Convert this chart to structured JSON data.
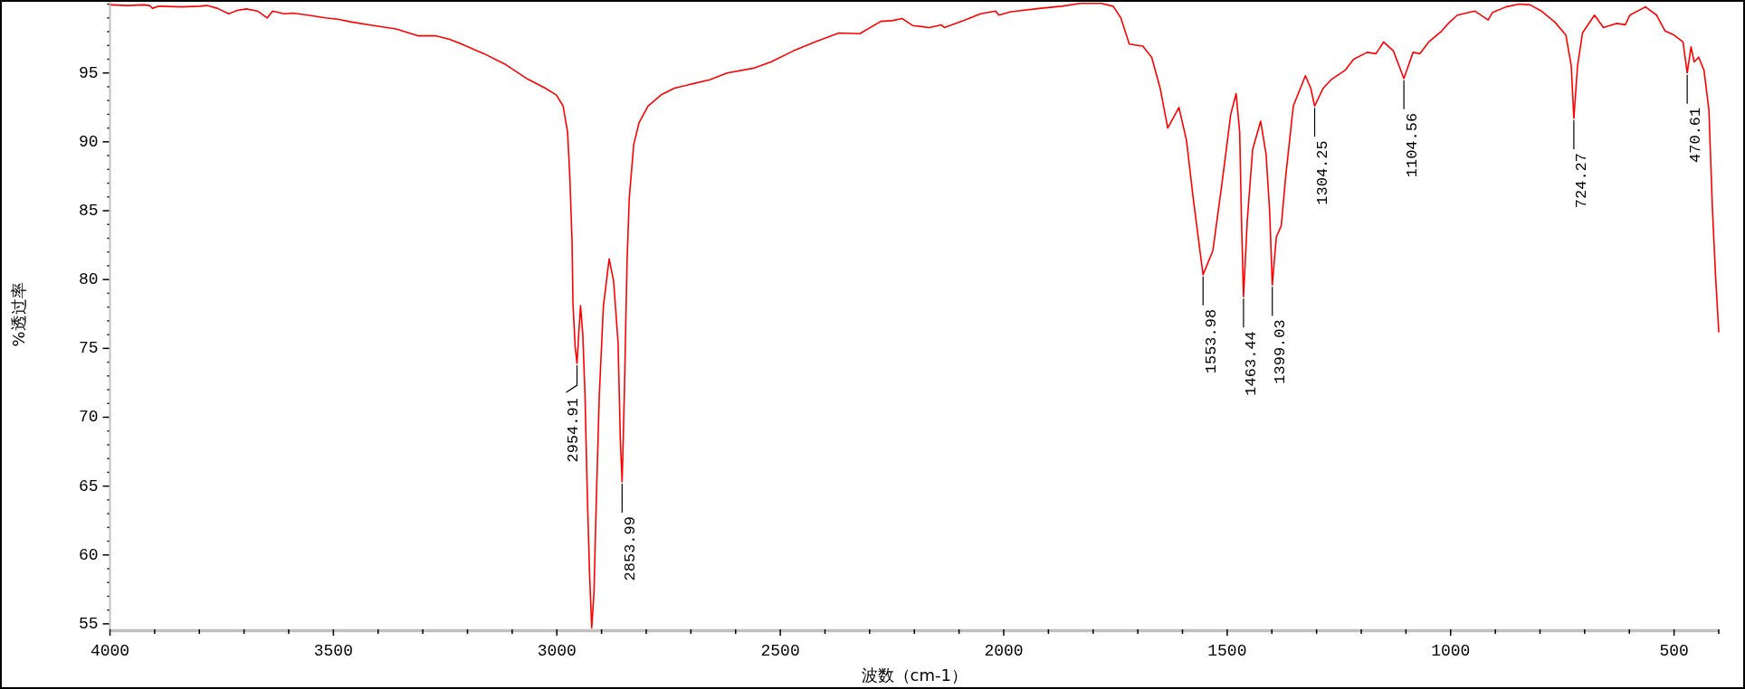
{
  "chart_data": {
    "type": "line",
    "xlabel": "波数（cm-1）",
    "ylabel": "%透过率",
    "x": [
      3998,
      3960,
      3925,
      3911,
      3905,
      3890,
      3840,
      3800,
      3783,
      3760,
      3734,
      3715,
      3695,
      3670,
      3648,
      3636,
      3610,
      3590,
      3557,
      3518,
      3490,
      3459,
      3410,
      3360,
      3311,
      3272,
      3240,
      3213,
      3163,
      3114,
      3065,
      3026,
      3001,
      2986,
      2976,
      2971,
      2966,
      2964,
      2959,
      2954.91,
      2951,
      2947,
      2942,
      2937,
      2932,
      2927,
      2922,
      2917,
      2912,
      2905,
      2896,
      2883,
      2873,
      2863,
      2858,
      2853.99,
      2849,
      2843,
      2838,
      2828,
      2816,
      2796,
      2767,
      2737,
      2698,
      2658,
      2619,
      2560,
      2521,
      2471,
      2423,
      2369,
      2322,
      2275,
      2250,
      2227,
      2204,
      2166,
      2140,
      2133,
      2086,
      2052,
      2018,
      2011,
      1984,
      1917,
      1870,
      1829,
      1782,
      1755,
      1738,
      1719,
      1689,
      1669,
      1650,
      1633,
      1608,
      1591,
      1576,
      1553.98,
      1532,
      1512,
      1492,
      1480,
      1472,
      1468,
      1463.44,
      1455,
      1443,
      1425,
      1413,
      1405,
      1399.03,
      1390,
      1379,
      1369,
      1352,
      1325,
      1313,
      1304.25,
      1285,
      1266,
      1236,
      1217,
      1187,
      1167,
      1150,
      1128,
      1104.56,
      1084,
      1069,
      1049,
      1020,
      1005,
      985,
      946,
      916,
      906,
      876,
      847,
      822,
      797,
      767,
      742,
      730,
      724.27,
      716,
      705,
      678,
      658,
      629,
      609,
      599,
      564,
      539,
      520,
      500,
      480,
      470.61,
      462,
      455,
      445,
      433,
      422,
      414,
      407,
      400
    ],
    "series": [
      {
        "color": "#ff0000",
        "values": [
          99.95,
          99.9,
          99.95,
          99.9,
          99.7,
          99.85,
          99.8,
          99.85,
          99.9,
          99.7,
          99.3,
          99.55,
          99.65,
          99.5,
          99.0,
          99.5,
          99.3,
          99.35,
          99.2,
          99.0,
          98.9,
          98.7,
          98.45,
          98.2,
          97.7,
          97.7,
          97.45,
          97.1,
          96.4,
          95.6,
          94.55,
          93.9,
          93.4,
          92.6,
          90.7,
          87.5,
          82.75,
          78.3,
          75.1,
          73.9,
          76.05,
          78.1,
          76.05,
          71.6,
          64.6,
          58.8,
          54.7,
          57.2,
          63.6,
          71.6,
          78.0,
          81.5,
          79.9,
          75.4,
          68.4,
          65.3,
          71.6,
          81.2,
          85.9,
          89.8,
          91.4,
          92.6,
          93.4,
          93.9,
          94.2,
          94.5,
          95.0,
          95.35,
          95.8,
          96.6,
          97.25,
          97.9,
          97.85,
          98.75,
          98.8,
          98.95,
          98.45,
          98.3,
          98.5,
          98.3,
          98.85,
          99.3,
          99.5,
          99.2,
          99.45,
          99.7,
          99.85,
          100.05,
          100.05,
          99.85,
          99.0,
          97.1,
          96.95,
          96.15,
          93.9,
          91.0,
          92.5,
          90.1,
          85.9,
          80.35,
          82.1,
          86.9,
          92.0,
          93.5,
          90.7,
          84.3,
          78.75,
          84.3,
          89.45,
          91.5,
          89.1,
          85.0,
          79.6,
          83.1,
          83.9,
          87.5,
          92.6,
          94.8,
          93.9,
          92.6,
          93.9,
          94.55,
          95.2,
          96.0,
          96.5,
          96.4,
          97.25,
          96.6,
          94.6,
          96.5,
          96.4,
          97.25,
          98.05,
          98.6,
          99.2,
          99.5,
          98.85,
          99.4,
          99.8,
          100.0,
          99.95,
          99.5,
          98.7,
          97.75,
          95.5,
          91.7,
          95.5,
          97.9,
          99.2,
          98.3,
          98.6,
          98.5,
          99.2,
          99.8,
          99.2,
          98.05,
          97.75,
          97.25,
          95.0,
          96.9,
          95.8,
          96.15,
          95.2,
          92.3,
          85.0,
          80.2,
          76.2
        ]
      }
    ],
    "xlim": [
      4000,
      400
    ],
    "ylim": [
      54.6,
      100.3
    ],
    "xticks": [
      4000,
      {
        "value": 3900,
        "label": null
      },
      {
        "value": 3800,
        "label": null
      },
      {
        "value": 3700,
        "label": null
      },
      {
        "value": 3600,
        "label": null
      },
      3500,
      {
        "value": 3400,
        "label": null
      },
      {
        "value": 3300,
        "label": null
      },
      {
        "value": 3200,
        "label": null
      },
      {
        "value": 3100,
        "label": null
      },
      3000,
      {
        "value": 2900,
        "label": null
      },
      {
        "value": 2800,
        "label": null
      },
      {
        "value": 2700,
        "label": null
      },
      {
        "value": 2600,
        "label": null
      },
      2500,
      {
        "value": 2400,
        "label": null
      },
      {
        "value": 2300,
        "label": null
      },
      {
        "value": 2200,
        "label": null
      },
      {
        "value": 2100,
        "label": null
      },
      2000,
      {
        "value": 1900,
        "label": null
      },
      {
        "value": 1800,
        "label": null
      },
      {
        "value": 1700,
        "label": null
      },
      {
        "value": 1600,
        "label": null
      },
      1500,
      {
        "value": 1400,
        "label": null
      },
      {
        "value": 1300,
        "label": null
      },
      {
        "value": 1200,
        "label": null
      },
      {
        "value": 1100,
        "label": null
      },
      1000,
      {
        "value": 900,
        "label": null
      },
      {
        "value": 800,
        "label": null
      },
      {
        "value": 700,
        "label": null
      },
      {
        "value": 600,
        "label": null
      },
      500,
      {
        "value": 400,
        "label": null
      }
    ],
    "yticks": [
      55,
      {
        "value": 56,
        "label": null
      },
      {
        "value": 57,
        "label": null
      },
      {
        "value": 58,
        "label": null
      },
      {
        "value": 59,
        "label": null
      },
      60,
      {
        "value": 61,
        "label": null
      },
      {
        "value": 62,
        "label": null
      },
      {
        "value": 63,
        "label": null
      },
      {
        "value": 64,
        "label": null
      },
      65,
      {
        "value": 66,
        "label": null
      },
      {
        "value": 67,
        "label": null
      },
      {
        "value": 68,
        "label": null
      },
      {
        "value": 69,
        "label": null
      },
      70,
      {
        "value": 71,
        "label": null
      },
      {
        "value": 72,
        "label": null
      },
      {
        "value": 73,
        "label": null
      },
      {
        "value": 74,
        "label": null
      },
      75,
      {
        "value": 76,
        "label": null
      },
      {
        "value": 77,
        "label": null
      },
      {
        "value": 78,
        "label": null
      },
      {
        "value": 79,
        "label": null
      },
      80,
      {
        "value": 81,
        "label": null
      },
      {
        "value": 82,
        "label": null
      },
      {
        "value": 83,
        "label": null
      },
      {
        "value": 84,
        "label": null
      },
      85,
      {
        "value": 86,
        "label": null
      },
      {
        "value": 87,
        "label": null
      },
      {
        "value": 88,
        "label": null
      },
      {
        "value": 89,
        "label": null
      },
      90,
      {
        "value": 91,
        "label": null
      },
      {
        "value": 92,
        "label": null
      },
      {
        "value": 93,
        "label": null
      },
      {
        "value": 94,
        "label": null
      },
      95,
      {
        "value": 96,
        "label": null
      },
      {
        "value": 97,
        "label": null
      },
      {
        "value": 98,
        "label": null
      },
      {
        "value": 99,
        "label": null
      },
      {
        "value": 100,
        "label": null
      }
    ],
    "annotations": [
      {
        "text": "2954.91",
        "x": 2954.91,
        "y": 73.9
      },
      {
        "text": "2853.99",
        "x": 2853.99,
        "y": 65.3
      },
      {
        "text": "1553.98",
        "x": 1553.98,
        "y": 80.35
      },
      {
        "text": "1463.44",
        "x": 1463.44,
        "y": 78.75
      },
      {
        "text": "1399.03",
        "x": 1399.03,
        "y": 79.6
      },
      {
        "text": "1304.25",
        "x": 1304.25,
        "y": 92.6
      },
      {
        "text": "1104.56",
        "x": 1104.56,
        "y": 94.6
      },
      {
        "text": "724.27",
        "x": 724.27,
        "y": 91.7
      },
      {
        "text": "470.61",
        "x": 470.61,
        "y": 95.0
      }
    ]
  }
}
